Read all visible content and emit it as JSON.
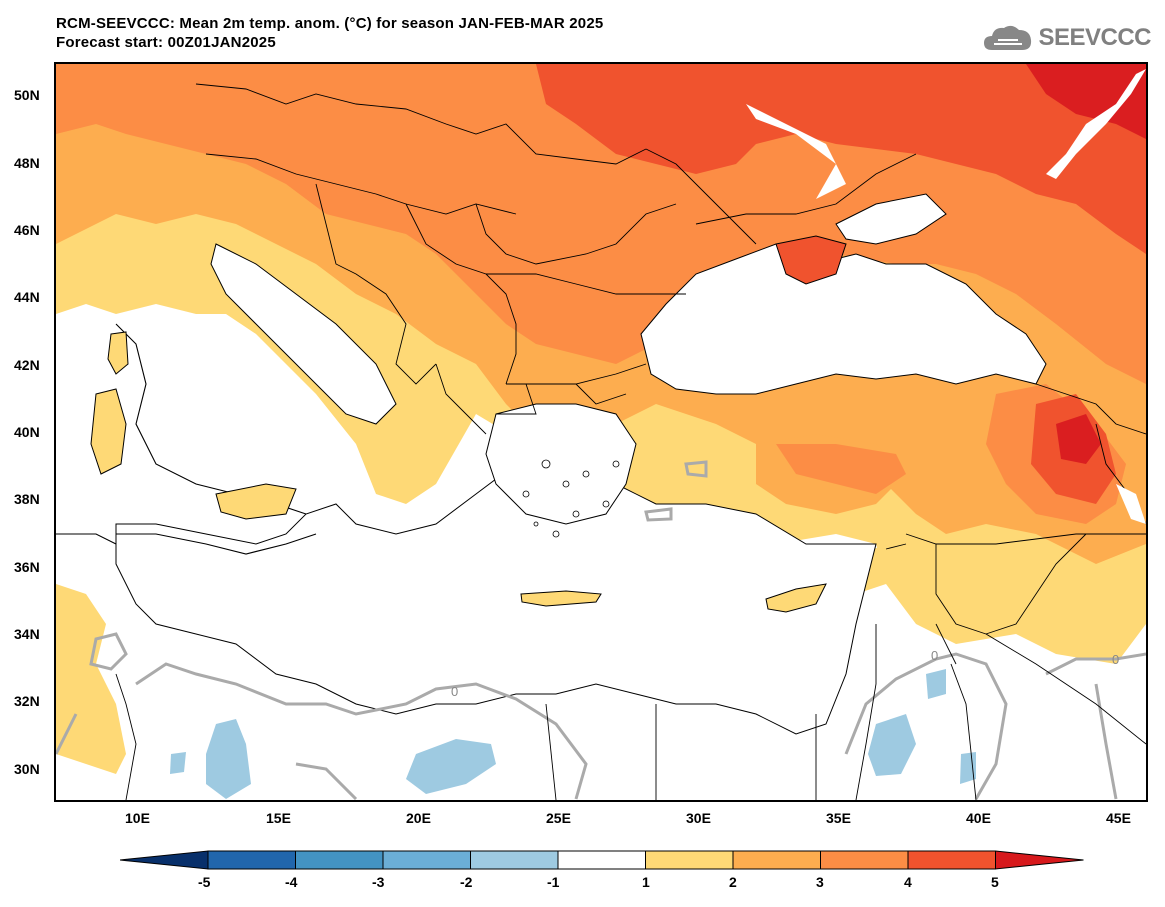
{
  "title": {
    "line1": "RCM-SEEVCCC: Mean 2m temp. anom. (°C) for season JAN-FEB-MAR 2025",
    "line2": "Forecast start: 00Z01JAN2025"
  },
  "logo": {
    "text": "SEEVCCC",
    "icon": "cloud-icon"
  },
  "map": {
    "lat_labels": [
      "50N",
      "48N",
      "46N",
      "44N",
      "42N",
      "40N",
      "38N",
      "36N",
      "34N",
      "32N",
      "30N"
    ],
    "lon_labels": [
      "10E",
      "15E",
      "20E",
      "25E",
      "30E",
      "35E",
      "40E",
      "45E"
    ],
    "contour_label": "0",
    "colors": {
      "anom_1_2": "#fed976",
      "anom_2_3": "#fdad4f",
      "anom_3_4": "#fc8d45",
      "anom_4_5": "#f0532e",
      "anom_5_plus": "#da1e20",
      "anom_neg_2_1": "#9ecae1",
      "land_sea": "#ffffff",
      "zero_contour": "#aaaaaa"
    }
  },
  "colorbar": {
    "ticks": [
      "-5",
      "-4",
      "-3",
      "-2",
      "-1",
      "1",
      "2",
      "3",
      "4",
      "5"
    ],
    "colors": [
      "#08306b",
      "#2166ac",
      "#4393c3",
      "#6baed6",
      "#9ecae1",
      "#ffffff",
      "#fed976",
      "#fdad4f",
      "#fc8d45",
      "#f0532e",
      "#d7191c"
    ]
  }
}
